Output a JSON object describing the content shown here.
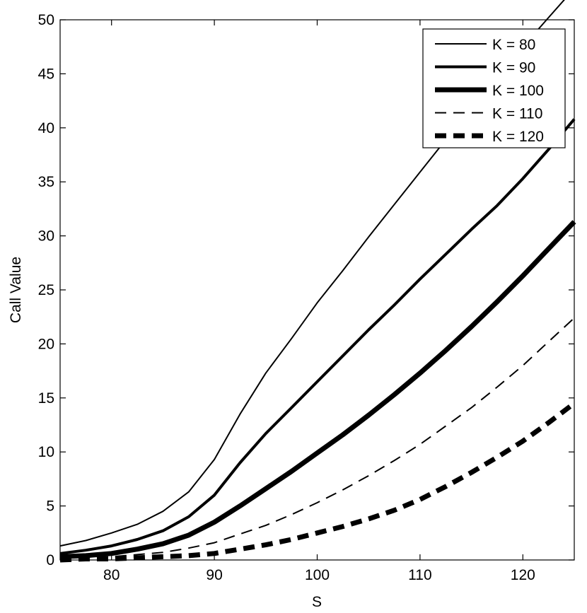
{
  "chart_data": {
    "type": "line",
    "title": "",
    "xlabel": "S",
    "ylabel": "Call Value",
    "xlim": [
      75,
      125
    ],
    "ylim": [
      0,
      50
    ],
    "xticks": [
      "80",
      "90",
      "100",
      "110",
      "120"
    ],
    "yticks": [
      "0",
      "5",
      "10",
      "15",
      "20",
      "25",
      "30",
      "35",
      "40",
      "45",
      "50"
    ],
    "grid": false,
    "legend_position": "top-right",
    "x": [
      75,
      77.5,
      80,
      82.5,
      85,
      87.5,
      90,
      92.5,
      95,
      97.5,
      100,
      102.5,
      105,
      107.5,
      110,
      112.5,
      115,
      117.5,
      120,
      122.5,
      125
    ],
    "series": [
      {
        "name": "K = 80",
        "line_style": "solid",
        "line_weight": "thin",
        "values": [
          1.3,
          1.8,
          2.5,
          3.3,
          4.5,
          6.3,
          9.3,
          13.5,
          17.3,
          20.5,
          23.8,
          26.8,
          29.9,
          32.9,
          35.9,
          38.9,
          41.8,
          44.7,
          47.5,
          50.2,
          52.9
        ]
      },
      {
        "name": "K = 90",
        "line_style": "solid",
        "line_weight": "medium",
        "values": [
          0.6,
          0.9,
          1.3,
          1.9,
          2.7,
          4.0,
          6.0,
          9.0,
          11.7,
          14.1,
          16.5,
          18.9,
          21.3,
          23.6,
          26.0,
          28.3,
          30.6,
          32.8,
          35.3,
          38.0,
          40.8
        ]
      },
      {
        "name": "K = 100",
        "line_style": "solid",
        "line_weight": "thick",
        "values": [
          0.3,
          0.4,
          0.6,
          1.0,
          1.5,
          2.3,
          3.5,
          5.0,
          6.6,
          8.2,
          9.9,
          11.6,
          13.4,
          15.3,
          17.3,
          19.4,
          21.6,
          23.9,
          26.3,
          28.8,
          31.3
        ]
      },
      {
        "name": "K = 110",
        "line_style": "dashed",
        "line_weight": "thin",
        "values": [
          0.1,
          0.2,
          0.3,
          0.5,
          0.7,
          1.1,
          1.6,
          2.4,
          3.2,
          4.2,
          5.3,
          6.5,
          7.8,
          9.2,
          10.7,
          12.4,
          14.1,
          16.0,
          18.0,
          20.2,
          22.4
        ]
      },
      {
        "name": "K = 120",
        "line_style": "dashed",
        "line_weight": "thick",
        "values": [
          0.0,
          0.1,
          0.1,
          0.2,
          0.3,
          0.4,
          0.6,
          1.0,
          1.4,
          1.9,
          2.5,
          3.1,
          3.8,
          4.6,
          5.6,
          6.8,
          8.1,
          9.5,
          11.0,
          12.7,
          14.5
        ]
      }
    ],
    "colors": {
      "line": "#000000",
      "background": "#ffffff",
      "axes": "#000000"
    }
  }
}
